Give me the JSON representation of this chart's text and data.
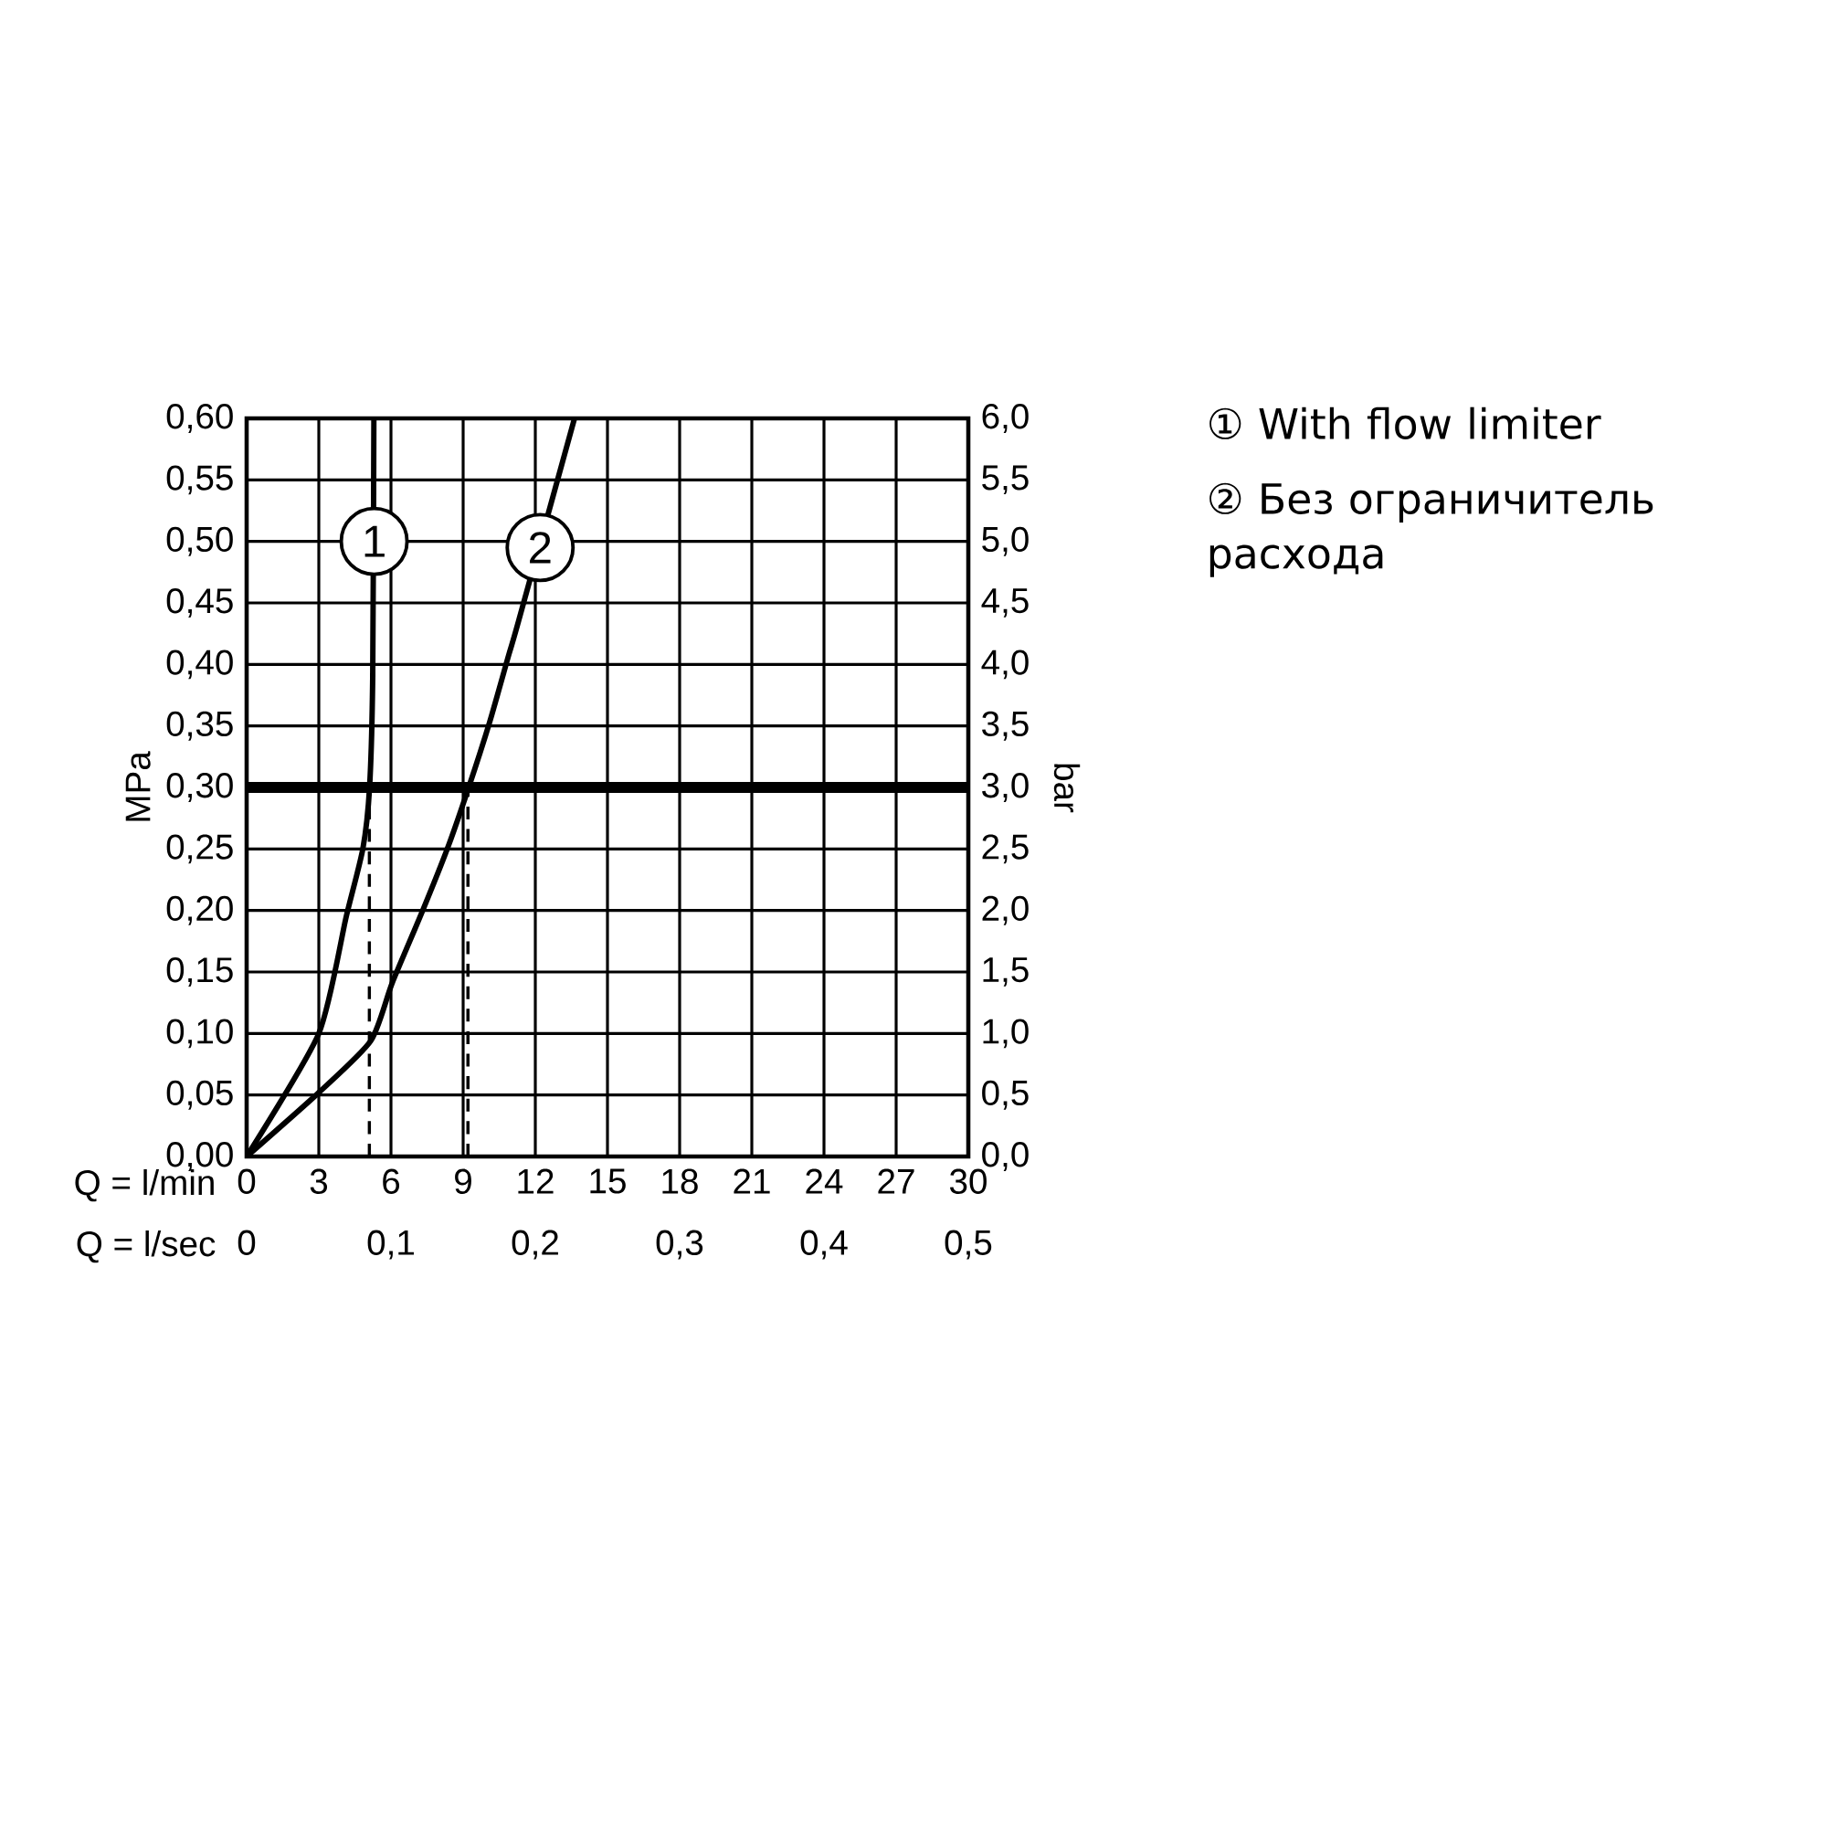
{
  "chart_data": {
    "type": "line",
    "xlabel": "Q = l/min",
    "x2label": "Q = l/sec",
    "ylabel": "MPa",
    "y2label": "bar",
    "series": [
      {
        "color": "#000000",
        "x": [
          0,
          3.0,
          4.14,
          4.83,
          5.11,
          5.24,
          5.29
        ],
        "values": [
          0,
          0.1,
          0.195,
          0.25,
          0.3,
          0.39,
          0.6
        ]
      },
      {
        "color": "#000000",
        "x": [
          0,
          3.0,
          5.16,
          6.05,
          7.32,
          8.34,
          9.23,
          10.1,
          10.9,
          11.3,
          13.63
        ],
        "values": [
          0,
          0.052,
          0.094,
          0.141,
          0.2,
          0.25,
          0.3,
          0.353,
          0.408,
          0.435,
          0.6
        ]
      }
    ],
    "xlim": [
      0,
      30
    ],
    "xticks": [
      0,
      3,
      6,
      9,
      12,
      15,
      18,
      21,
      24,
      27,
      30
    ],
    "x2lim": [
      0,
      0.5
    ],
    "x2ticks": [
      0,
      {
        "value": 0.1,
        "label": "0,1"
      },
      {
        "value": 0.2,
        "label": "0,2"
      },
      {
        "value": 0.3,
        "label": "0,3"
      },
      {
        "value": 0.4,
        "label": "0,4"
      },
      {
        "value": 0.5,
        "label": "0,5"
      }
    ],
    "ylim": [
      0,
      0.6
    ],
    "yticks": [
      {
        "value": 0,
        "label": "0,00"
      },
      {
        "value": 0.05,
        "label": "0,05"
      },
      {
        "value": 0.1,
        "label": "0,10"
      },
      {
        "value": 0.15,
        "label": "0,15"
      },
      {
        "value": 0.2,
        "label": "0,20"
      },
      {
        "value": 0.25,
        "label": "0,25"
      },
      {
        "value": 0.3,
        "label": "0,30"
      },
      {
        "value": 0.35,
        "label": "0,35"
      },
      {
        "value": 0.4,
        "label": "0,40"
      },
      {
        "value": 0.45,
        "label": "0,45"
      },
      {
        "value": 0.5,
        "label": "0,50"
      },
      {
        "value": 0.55,
        "label": "0,55"
      },
      {
        "value": 0.6,
        "label": "0,60"
      }
    ],
    "y2lim": [
      0,
      6
    ],
    "y2ticks": [
      {
        "value": 0,
        "label": "0,0"
      },
      {
        "value": 0.5,
        "label": "0,5"
      },
      {
        "value": 1,
        "label": "1,0"
      },
      {
        "value": 1.5,
        "label": "1,5"
      },
      {
        "value": 2,
        "label": "2,0"
      },
      {
        "value": 2.5,
        "label": "2,5"
      },
      {
        "value": 3,
        "label": "3,0"
      },
      {
        "value": 3.5,
        "label": "3,5"
      },
      {
        "value": 4,
        "label": "4,0"
      },
      {
        "value": 4.5,
        "label": "4,5"
      },
      {
        "value": 5,
        "label": "5,0"
      },
      {
        "value": 5.5,
        "label": "5,5"
      },
      {
        "value": 6,
        "label": "6,0"
      }
    ],
    "grid": true,
    "ref_lines": [
      {
        "axis": "y",
        "value": 0.3,
        "color": "#000000"
      },
      {
        "axis": "x",
        "value": 5.1,
        "color": "#000000",
        "line_style": "dashed"
      },
      {
        "axis": "x",
        "value": 9.2,
        "color": "#000000",
        "line_style": "dashed"
      }
    ],
    "annotations": [
      {
        "text": "1",
        "x": 5.3,
        "y": 0.5
      },
      {
        "text": "2",
        "x": 12.2,
        "y": 0.495
      },
      "① With flow limiter",
      "② Без ограничитель расхода"
    ]
  }
}
